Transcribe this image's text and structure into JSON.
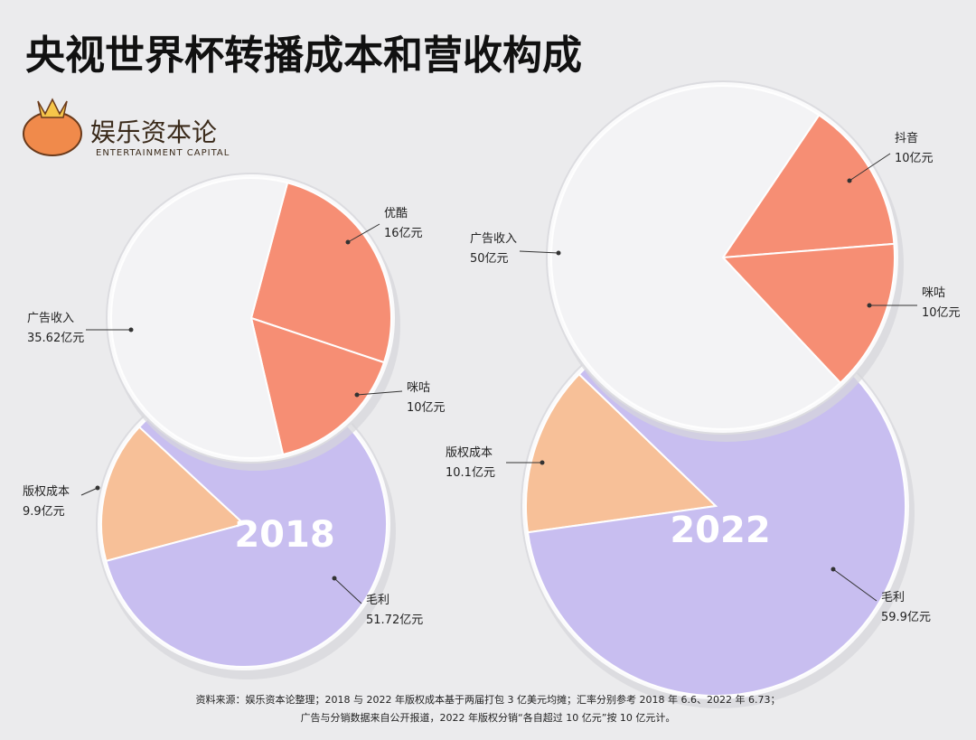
{
  "title": "央视世界杯转播成本和营收构成",
  "logo": {
    "name": "娱乐资本论",
    "subtitle": "ENTERTAINMENT CAPITAL"
  },
  "source": [
    "资料来源：娱乐资本论整理；2018 与 2022 年版权成本基于两届打包 3 亿美元均摊；汇率分别参考 2018 年 6.6、2022 年 6.73；",
    "广告与分销数据来自公开报道，2022 年版权分销“各自超过 10 亿元”按 10 亿元计。"
  ],
  "chart_data": [
    {
      "type": "pie",
      "categories": [
        "版权成本",
        "毛利"
      ],
      "values": [
        9.9,
        51.72
      ],
      "value_labels": [
        "9.9亿元",
        "51.72亿元"
      ],
      "colors": [
        "#f7bd93",
        "#c6bbf0"
      ],
      "label": "2018"
    },
    {
      "type": "pie",
      "categories": [
        "优酷",
        "咪咕",
        "广告收入"
      ],
      "values": [
        16,
        10,
        35.62
      ],
      "value_labels": [
        "16亿元",
        "10亿元",
        "35.62亿元"
      ],
      "colors": [
        "#f6896d",
        "#f6896d",
        "#f3f3f5"
      ]
    },
    {
      "type": "pie",
      "categories": [
        "版权成本",
        "毛利"
      ],
      "values": [
        10.1,
        59.9
      ],
      "value_labels": [
        "10.1亿元",
        "59.9亿元"
      ],
      "colors": [
        "#f7bd93",
        "#c6bbf0"
      ],
      "label": "2022"
    },
    {
      "type": "pie",
      "categories": [
        "抖音",
        "咪咕",
        "广告收入"
      ],
      "values": [
        10,
        10,
        50
      ],
      "value_labels": [
        "10亿元",
        "10亿元",
        "50亿元"
      ],
      "colors": [
        "#f6896d",
        "#f6896d",
        "#f3f3f5"
      ]
    }
  ]
}
